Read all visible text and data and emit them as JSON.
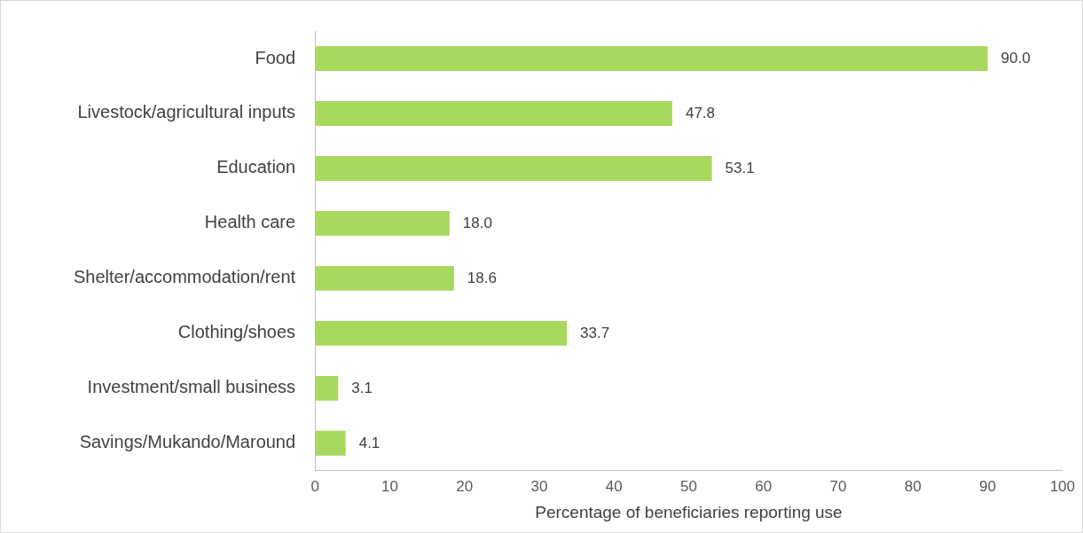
{
  "chart_data": {
    "type": "bar",
    "orientation": "horizontal",
    "xlabel": "Percentage of beneficiaries reporting use",
    "categories": [
      "Food",
      "Livestock/agricultural inputs",
      "Education",
      "Health care",
      "Shelter/accommodation/rent",
      "Clothing/shoes",
      "Investment/small business",
      "Savings/Mukando/Maround"
    ],
    "values": [
      90.0,
      47.8,
      53.1,
      18.0,
      18.6,
      33.7,
      3.1,
      4.1
    ],
    "value_labels": [
      "90.0",
      "47.8",
      "53.1",
      "18.0",
      "18.6",
      "33.7",
      "3.1",
      "4.1"
    ],
    "color": "#a9d85e",
    "xlim": [
      0,
      100
    ],
    "xticks": [
      0,
      10,
      20,
      30,
      40,
      50,
      60,
      70,
      80,
      90,
      100
    ]
  }
}
